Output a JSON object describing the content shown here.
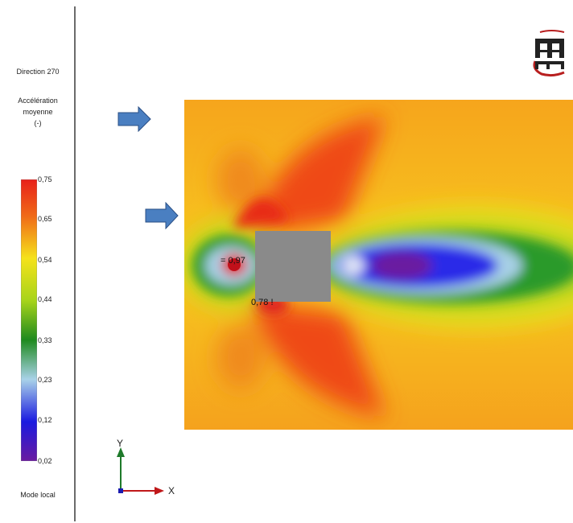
{
  "sidebar": {
    "direction": "Direction  270",
    "accel_line1": "Accélération",
    "accel_line2": "moyenne",
    "accel_line3": "(-)",
    "mode": "Mode local"
  },
  "legend": {
    "ticks": [
      "0,75",
      "0,65",
      "0,54",
      "0,44",
      "0,33",
      "0,23",
      "0,12",
      "0,02"
    ]
  },
  "probes": {
    "front": "0,97",
    "back": "0,78 !"
  },
  "axes": {
    "x": "X",
    "y": "Y"
  },
  "colors": {
    "arrow_fill": "#4a7fc1",
    "building": "#8a8a8a",
    "high": "#e8201a",
    "mid": "#1e8a1e",
    "low": "#1a1ae0",
    "min": "#6a1aa0"
  }
}
